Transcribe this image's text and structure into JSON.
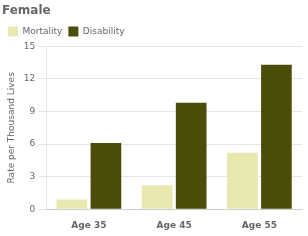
{
  "chart_data": {
    "type": "bar",
    "title": "Female",
    "ylabel": "Rate per Thousand Lives",
    "categories": [
      "Age 35",
      "Age 45",
      "Age 55"
    ],
    "series": [
      {
        "name": "Mortality",
        "color": "#e8e8b0",
        "values": [
          0.9,
          2.2,
          5.2
        ]
      },
      {
        "name": "Disability",
        "color": "#4d4d0a",
        "values": [
          6.1,
          9.8,
          13.3
        ]
      }
    ],
    "ylim": [
      0,
      15
    ],
    "yticks": [
      0,
      3,
      6,
      9,
      12,
      15
    ],
    "grid": true,
    "legend": "upper left"
  }
}
